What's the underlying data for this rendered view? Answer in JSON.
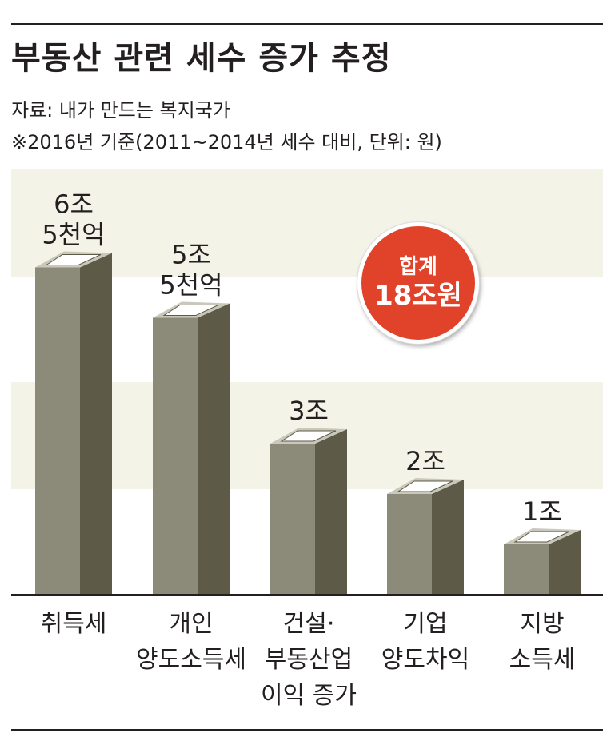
{
  "title": "부동산 관련 세수 증가 추정",
  "source": "자료: 내가 만드는 복지국가",
  "note": "※2016년 기준(2011~2014년 세수 대비, 단위: 원)",
  "badge": {
    "line1": "합계",
    "line2": "18조원"
  },
  "colors": {
    "bar_front": "#8c8a79",
    "bar_side": "#5e5a48",
    "bar_top": "#c9c8ba",
    "band": "#f3f3e7",
    "badge": "#e0432a",
    "text": "#231f20"
  },
  "chart_data": {
    "type": "bar",
    "title": "부동산 관련 세수 증가 추정",
    "categories": [
      [
        "취득세"
      ],
      [
        "개인",
        "양도소득세"
      ],
      [
        "건설·",
        "부동산업",
        "이익 증가"
      ],
      [
        "기업",
        "양도차익"
      ],
      [
        "지방",
        "소득세"
      ]
    ],
    "values": [
      6.5,
      5.5,
      3,
      2,
      1
    ],
    "unit": "조원",
    "value_labels": [
      [
        "6조",
        "5천억"
      ],
      [
        "5조",
        "5천억"
      ],
      [
        "3조"
      ],
      [
        "2조"
      ],
      [
        "1조"
      ]
    ],
    "xlabel": "",
    "ylabel": "",
    "total_label": "합계 18조원",
    "grid": false,
    "legend": "none"
  }
}
